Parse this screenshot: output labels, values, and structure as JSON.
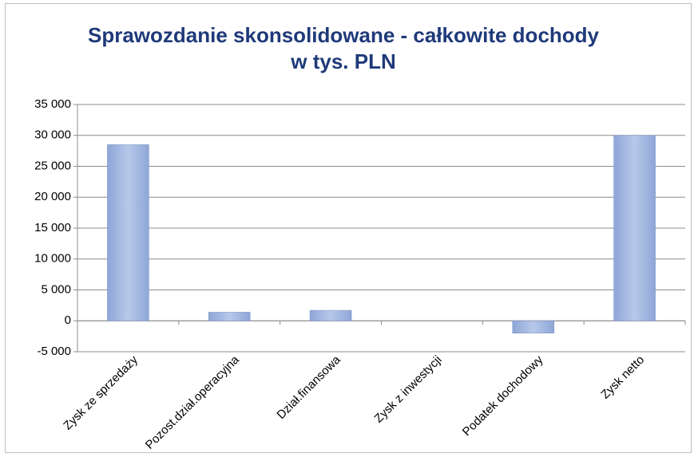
{
  "chart_data": {
    "type": "bar",
    "title": "Sprawozdanie skonsolidowane - całkowite dochody w tys. PLN",
    "categories": [
      "Zysk ze sprzedaży",
      "Pozost.dział.operacyjna",
      "Dział.finansowa",
      "Zysk z inwestycji",
      "Podatek dochodowy",
      "Zysk netto"
    ],
    "values": [
      28500,
      1400,
      1700,
      0,
      -2000,
      30000
    ],
    "color": "#8ea6d6",
    "ylim": [
      -5000,
      35000
    ],
    "yticks": [
      {
        "value": -5000,
        "label": "-5 000"
      },
      0,
      {
        "value": 5000,
        "label": "5 000"
      },
      {
        "value": 10000,
        "label": "10 000"
      },
      {
        "value": 15000,
        "label": "15 000"
      },
      {
        "value": 20000,
        "label": "20 000"
      },
      {
        "value": 25000,
        "label": "25 000"
      },
      {
        "value": 30000,
        "label": "30 000"
      },
      {
        "value": 35000,
        "label": "35 000"
      }
    ],
    "grid": true
  }
}
